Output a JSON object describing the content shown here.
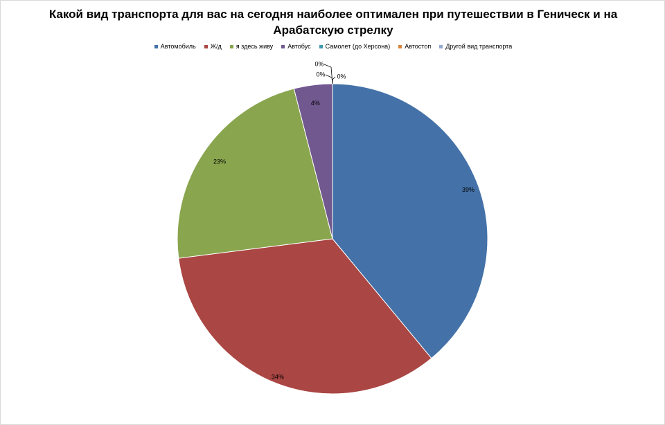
{
  "chart_data": {
    "type": "pie",
    "title": "Какой вид транспорта для вас на сегодня наиболее оптимален при путешествии в Геническ и на Арабатскую стрелку",
    "legend_position": "top",
    "slices": [
      {
        "name": "Автомобиль",
        "value": 39,
        "label": "39%",
        "color": "#4472a8"
      },
      {
        "name": "Ж/д",
        "value": 34,
        "label": "34%",
        "color": "#aa4643"
      },
      {
        "name": "я здесь живу",
        "value": 23,
        "label": "23%",
        "color": "#89a54e"
      },
      {
        "name": "Автобус",
        "value": 4,
        "label": "4%",
        "color": "#71588f"
      },
      {
        "name": "Самолет (до Херсона)",
        "value": 0,
        "label": "0%",
        "color": "#4198af"
      },
      {
        "name": "Автостоп",
        "value": 0,
        "label": "0%",
        "color": "#db843d"
      },
      {
        "name": "Другой вид транспорта",
        "value": 0,
        "label": "0%",
        "color": "#93a9cf"
      }
    ]
  }
}
